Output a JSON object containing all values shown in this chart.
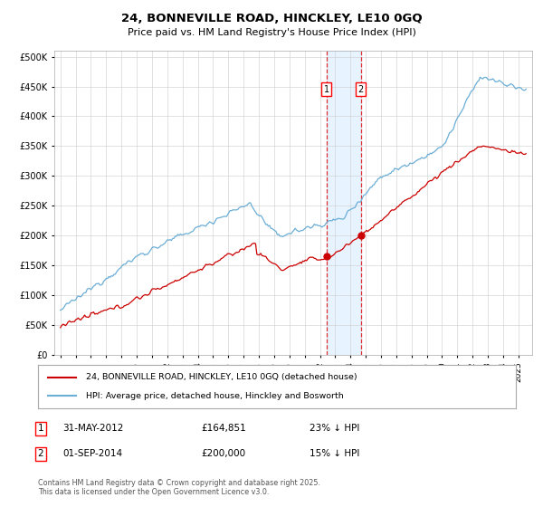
{
  "title": "24, BONNEVILLE ROAD, HINCKLEY, LE10 0GQ",
  "subtitle": "Price paid vs. HM Land Registry's House Price Index (HPI)",
  "hpi_color": "#6baed6",
  "price_color": "#cc0000",
  "sale1_price": 164851,
  "sale1_x": 2012.42,
  "sale2_price": 200000,
  "sale2_x": 2014.67,
  "legend_line1": "24, BONNEVILLE ROAD, HINCKLEY, LE10 0GQ (detached house)",
  "legend_line2": "HPI: Average price, detached house, Hinckley and Bosworth",
  "sale1_date": "31-MAY-2012",
  "sale1_pct": "23% ↓ HPI",
  "sale2_date": "01-SEP-2014",
  "sale2_pct": "15% ↓ HPI",
  "copyright": "Contains HM Land Registry data © Crown copyright and database right 2025.\nThis data is licensed under the Open Government Licence v3.0.",
  "background_color": "#ffffff",
  "grid_color": "#cccccc"
}
